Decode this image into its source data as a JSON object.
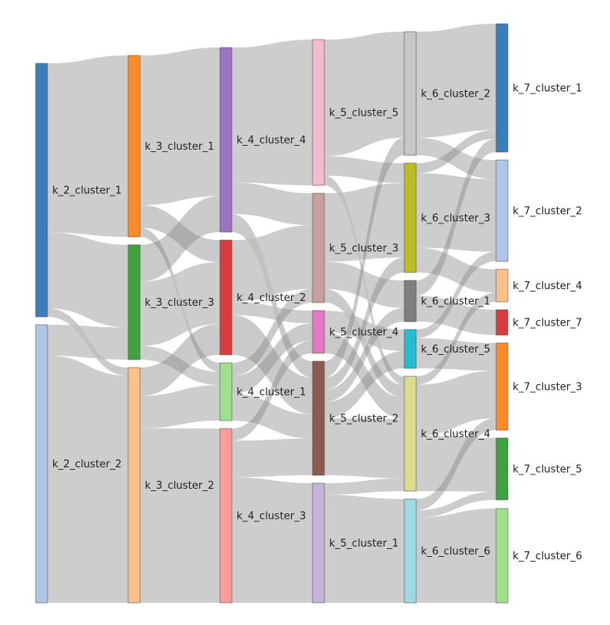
{
  "nodes": [
    {
      "id": "k_2_cluster_1",
      "label": "k_2_cluster_1",
      "color": "#3a7fbb"
    },
    {
      "id": "k_2_cluster_2",
      "label": "k_2_cluster_2",
      "color": "#aec7e8"
    },
    {
      "id": "k_3_cluster_1",
      "label": "k_3_cluster_1",
      "color": "#fe8b28"
    },
    {
      "id": "k_3_cluster_3",
      "label": "k_3_cluster_3",
      "color": "#3ea23f"
    },
    {
      "id": "k_3_cluster_2",
      "label": "k_3_cluster_2",
      "color": "#fec08a"
    },
    {
      "id": "k_4_cluster_4",
      "label": "k_4_cluster_4",
      "color": "#9b73c2"
    },
    {
      "id": "k_4_cluster_2",
      "label": "k_4_cluster_2",
      "color": "#d83c3c"
    },
    {
      "id": "k_4_cluster_1",
      "label": "k_4_cluster_1",
      "color": "#9ee08c"
    },
    {
      "id": "k_4_cluster_3",
      "label": "k_4_cluster_3",
      "color": "#fe9c9c"
    },
    {
      "id": "k_5_cluster_5",
      "label": "k_5_cluster_5",
      "color": "#f5bad1"
    },
    {
      "id": "k_5_cluster_3",
      "label": "k_5_cluster_3",
      "color": "#c7a09b"
    },
    {
      "id": "k_5_cluster_4",
      "label": "k_5_cluster_4",
      "color": "#e377c2"
    },
    {
      "id": "k_5_cluster_2",
      "label": "k_5_cluster_2",
      "color": "#8c5a52"
    },
    {
      "id": "k_5_cluster_1",
      "label": "k_5_cluster_1",
      "color": "#c6b3da"
    },
    {
      "id": "k_6_cluster_2",
      "label": "k_6_cluster_2",
      "color": "#c7c7c7"
    },
    {
      "id": "k_6_cluster_3",
      "label": "k_6_cluster_3",
      "color": "#bcbd22"
    },
    {
      "id": "k_6_cluster_1",
      "label": "k_6_cluster_1",
      "color": "#7f7f7f"
    },
    {
      "id": "k_6_cluster_5",
      "label": "k_6_cluster_5",
      "color": "#22becf"
    },
    {
      "id": "k_6_cluster_4",
      "label": "k_6_cluster_4",
      "color": "#dbdb8d"
    },
    {
      "id": "k_6_cluster_6",
      "label": "k_6_cluster_6",
      "color": "#9edae5"
    },
    {
      "id": "k_7_cluster_1",
      "label": "k_7_cluster_1",
      "color": "#3a7fbb"
    },
    {
      "id": "k_7_cluster_2",
      "label": "k_7_cluster_2",
      "color": "#aec7e8"
    },
    {
      "id": "k_7_cluster_4",
      "label": "k_7_cluster_4",
      "color": "#fec08a"
    },
    {
      "id": "k_7_cluster_7",
      "label": "k_7_cluster_7",
      "color": "#d83c3c"
    },
    {
      "id": "k_7_cluster_3",
      "label": "k_7_cluster_3",
      "color": "#fe8b28"
    },
    {
      "id": "k_7_cluster_5",
      "label": "k_7_cluster_5",
      "color": "#3ea23f"
    },
    {
      "id": "k_7_cluster_6",
      "label": "k_7_cluster_6",
      "color": "#9ee08c"
    }
  ],
  "links": [
    {
      "source": "k_2_cluster_1",
      "target": "k_3_cluster_1",
      "value": 40
    },
    {
      "source": "k_2_cluster_1",
      "target": "k_3_cluster_3",
      "value": 18
    },
    {
      "source": "k_2_cluster_1",
      "target": "k_3_cluster_2",
      "value": 2
    },
    {
      "source": "k_2_cluster_2",
      "target": "k_3_cluster_3",
      "value": 7
    },
    {
      "source": "k_2_cluster_2",
      "target": "k_3_cluster_2",
      "value": 56
    },
    {
      "source": "k_3_cluster_1",
      "target": "k_4_cluster_4",
      "value": 33
    },
    {
      "source": "k_3_cluster_1",
      "target": "k_4_cluster_2",
      "value": 5
    },
    {
      "source": "k_3_cluster_1",
      "target": "k_4_cluster_1",
      "value": 2
    },
    {
      "source": "k_3_cluster_3",
      "target": "k_4_cluster_4",
      "value": 8
    },
    {
      "source": "k_3_cluster_3",
      "target": "k_4_cluster_2",
      "value": 14
    },
    {
      "source": "k_3_cluster_3",
      "target": "k_4_cluster_1",
      "value": 3
    },
    {
      "source": "k_3_cluster_2",
      "target": "k_4_cluster_2",
      "value": 7
    },
    {
      "source": "k_3_cluster_2",
      "target": "k_4_cluster_1",
      "value": 8
    },
    {
      "source": "k_3_cluster_2",
      "target": "k_4_cluster_3",
      "value": 43
    },
    {
      "source": "k_4_cluster_4",
      "target": "k_5_cluster_5",
      "value": 30
    },
    {
      "source": "k_4_cluster_4",
      "target": "k_5_cluster_3",
      "value": 7
    },
    {
      "source": "k_4_cluster_4",
      "target": "k_5_cluster_2",
      "value": 4
    },
    {
      "source": "k_4_cluster_2",
      "target": "k_5_cluster_3",
      "value": 14
    },
    {
      "source": "k_4_cluster_2",
      "target": "k_5_cluster_4",
      "value": 3
    },
    {
      "source": "k_4_cluster_2",
      "target": "k_5_cluster_2",
      "value": 9
    },
    {
      "source": "k_4_cluster_1",
      "target": "k_5_cluster_3",
      "value": 3
    },
    {
      "source": "k_4_cluster_1",
      "target": "k_5_cluster_4",
      "value": 4
    },
    {
      "source": "k_4_cluster_1",
      "target": "k_5_cluster_2",
      "value": 6
    },
    {
      "source": "k_4_cluster_3",
      "target": "k_5_cluster_4",
      "value": 3
    },
    {
      "source": "k_4_cluster_3",
      "target": "k_5_cluster_2",
      "value": 9
    },
    {
      "source": "k_4_cluster_3",
      "target": "k_5_cluster_1",
      "value": 31
    },
    {
      "source": "k_5_cluster_5",
      "target": "k_6_cluster_2",
      "value": 24
    },
    {
      "source": "k_5_cluster_5",
      "target": "k_6_cluster_3",
      "value": 4
    },
    {
      "source": "k_5_cluster_5",
      "target": "k_6_cluster_4",
      "value": 2
    },
    {
      "source": "k_5_cluster_3",
      "target": "k_6_cluster_3",
      "value": 15
    },
    {
      "source": "k_5_cluster_3",
      "target": "k_6_cluster_1",
      "value": 6
    },
    {
      "source": "k_5_cluster_3",
      "target": "k_6_cluster_4",
      "value": 3
    },
    {
      "source": "k_5_cluster_4",
      "target": "k_6_cluster_5",
      "value": 5
    },
    {
      "source": "k_5_cluster_4",
      "target": "k_6_cluster_4",
      "value": 5
    },
    {
      "source": "k_5_cluster_2",
      "target": "k_6_cluster_2",
      "value": 4
    },
    {
      "source": "k_5_cluster_2",
      "target": "k_6_cluster_3",
      "value": 3
    },
    {
      "source": "k_5_cluster_2",
      "target": "k_6_cluster_1",
      "value": 3
    },
    {
      "source": "k_5_cluster_2",
      "target": "k_6_cluster_5",
      "value": 4
    },
    {
      "source": "k_5_cluster_2",
      "target": "k_6_cluster_4",
      "value": 14
    },
    {
      "source": "k_5_cluster_1",
      "target": "k_6_cluster_4",
      "value": 3
    },
    {
      "source": "k_5_cluster_1",
      "target": "k_6_cluster_6",
      "value": 28
    },
    {
      "source": "k_6_cluster_2",
      "target": "k_7_cluster_1",
      "value": 24
    },
    {
      "source": "k_6_cluster_2",
      "target": "k_7_cluster_2",
      "value": 4
    },
    {
      "source": "k_6_cluster_3",
      "target": "k_7_cluster_1",
      "value": 2
    },
    {
      "source": "k_6_cluster_3",
      "target": "k_7_cluster_2",
      "value": 15
    },
    {
      "source": "k_6_cluster_3",
      "target": "k_7_cluster_4",
      "value": 5
    },
    {
      "source": "k_6_cluster_1",
      "target": "k_7_cluster_1",
      "value": 3
    },
    {
      "source": "k_6_cluster_1",
      "target": "k_7_cluster_7",
      "value": 5
    },
    {
      "source": "k_6_cluster_5",
      "target": "k_7_cluster_2",
      "value": 2
    },
    {
      "source": "k_6_cluster_5",
      "target": "k_7_cluster_3",
      "value": 7
    },
    {
      "source": "k_6_cluster_4",
      "target": "k_7_cluster_4",
      "value": 2
    },
    {
      "source": "k_6_cluster_4",
      "target": "k_7_cluster_3",
      "value": 12
    },
    {
      "source": "k_6_cluster_4",
      "target": "k_7_cluster_5",
      "value": 13
    },
    {
      "source": "k_6_cluster_6",
      "target": "k_7_cluster_3",
      "value": 3
    },
    {
      "source": "k_6_cluster_6",
      "target": "k_7_cluster_5",
      "value": 2
    },
    {
      "source": "k_6_cluster_6",
      "target": "k_7_cluster_6",
      "value": 23
    }
  ]
}
